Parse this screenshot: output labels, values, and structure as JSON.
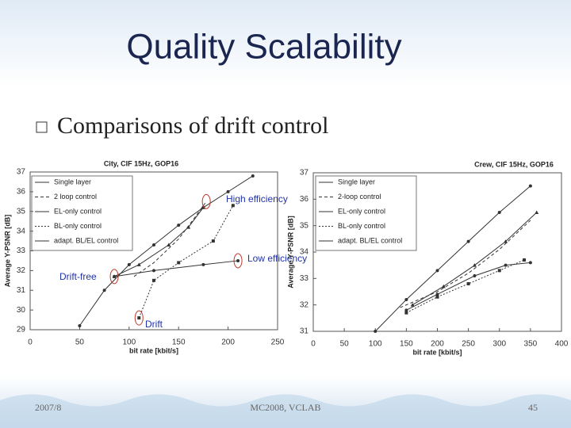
{
  "slide": {
    "title": "Quality Scalability",
    "bullet": "Comparisons of drift control",
    "footer_left": "2007/8",
    "footer_center": "MC2008, VCLAB",
    "page_number": "45"
  },
  "chart_data": [
    {
      "type": "line",
      "title": "City, CIF 15Hz, GOP16",
      "x_label": "bit rate [kbit/s]",
      "y_label": "Average Y-PSNR [dB]",
      "xlim": [
        0,
        250
      ],
      "xticks": [
        0,
        50,
        100,
        150,
        200,
        250
      ],
      "ylim": [
        29,
        37
      ],
      "yticks": [
        29,
        30,
        31,
        32,
        33,
        34,
        35,
        36,
        37
      ],
      "annotations": [
        "High efficiency",
        "Low efficiency",
        "Drift-free",
        "Drift"
      ],
      "series": [
        {
          "name": "Single layer",
          "color": "#333333",
          "x": [
            50,
            75,
            100,
            125,
            150,
            175,
            200,
            225
          ],
          "values": [
            29.2,
            31,
            32.3,
            33.3,
            34.3,
            35.2,
            36,
            36.8
          ]
        },
        {
          "name": "2 loop control",
          "color": "#333333",
          "x": [
            105,
            125,
            150,
            165,
            178
          ],
          "values": [
            31.7,
            32.4,
            33.6,
            34.6,
            35.5
          ]
        },
        {
          "name": "EL-only control",
          "color": "#333333",
          "x": [
            85,
            110,
            140,
            160,
            175
          ],
          "values": [
            31.7,
            32.3,
            33.3,
            34.2,
            35.2
          ]
        },
        {
          "name": "BL-only control",
          "color": "#333333",
          "x": [
            110,
            125,
            150,
            185,
            205
          ],
          "values": [
            29.6,
            31.5,
            32.4,
            33.5,
            35.3
          ]
        },
        {
          "name": "adapt. BL/EL control",
          "color": "#333333",
          "x": [
            85,
            125,
            175,
            210
          ],
          "values": [
            31.7,
            32,
            32.3,
            32.5
          ]
        }
      ]
    },
    {
      "type": "line",
      "title": "Crew, CIF 15Hz, GOP16",
      "x_label": "bit rate [kbit/s]",
      "y_label": "Average Y-PSNR [dB]",
      "xlim": [
        0,
        400
      ],
      "xticks": [
        0,
        50,
        100,
        150,
        200,
        250,
        300,
        350,
        400
      ],
      "ylim": [
        31,
        37
      ],
      "yticks": [
        31,
        32,
        33,
        34,
        35,
        36,
        37
      ],
      "series": [
        {
          "name": "Single layer",
          "color": "#333333",
          "x": [
            100,
            150,
            200,
            250,
            300,
            350
          ],
          "values": [
            31,
            32.2,
            33.3,
            34.4,
            35.5,
            36.5
          ]
        },
        {
          "name": "2-loop control",
          "color": "#333333",
          "x": [
            140,
            200,
            250,
            300,
            350
          ],
          "values": [
            31.9,
            32.5,
            33.2,
            34.1,
            35.2
          ]
        },
        {
          "name": "EL-only control",
          "color": "#333333",
          "x": [
            160,
            210,
            260,
            310,
            360
          ],
          "values": [
            32,
            32.7,
            33.5,
            34.4,
            35.5
          ]
        },
        {
          "name": "BL-only control",
          "color": "#333333",
          "x": [
            150,
            200,
            250,
            300,
            340
          ],
          "values": [
            31.7,
            32.3,
            32.8,
            33.3,
            33.7
          ]
        },
        {
          "name": "adapt. BL/EL control",
          "color": "#333333",
          "x": [
            150,
            200,
            260,
            310,
            350
          ],
          "values": [
            31.8,
            32.4,
            33.1,
            33.5,
            33.6
          ]
        }
      ]
    }
  ]
}
